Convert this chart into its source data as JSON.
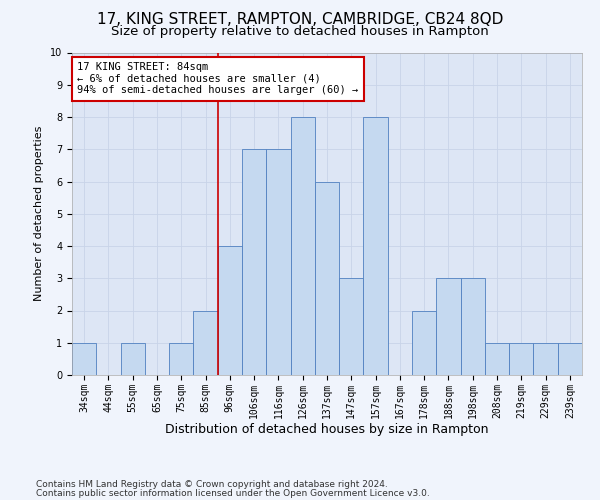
{
  "title1": "17, KING STREET, RAMPTON, CAMBRIDGE, CB24 8QD",
  "title2": "Size of property relative to detached houses in Rampton",
  "xlabel": "Distribution of detached houses by size in Rampton",
  "ylabel": "Number of detached properties",
  "categories": [
    "34sqm",
    "44sqm",
    "55sqm",
    "65sqm",
    "75sqm",
    "85sqm",
    "96sqm",
    "106sqm",
    "116sqm",
    "126sqm",
    "137sqm",
    "147sqm",
    "157sqm",
    "167sqm",
    "178sqm",
    "188sqm",
    "198sqm",
    "208sqm",
    "219sqm",
    "229sqm",
    "239sqm"
  ],
  "values": [
    1,
    0,
    1,
    0,
    1,
    2,
    4,
    7,
    7,
    8,
    6,
    3,
    8,
    0,
    2,
    3,
    3,
    1,
    1,
    1,
    1
  ],
  "bar_color": "#c5d9f0",
  "bar_edge_color": "#5080c0",
  "annotation_box_text": "17 KING STREET: 84sqm\n← 6% of detached houses are smaller (4)\n94% of semi-detached houses are larger (60) →",
  "annotation_box_color": "#ffffff",
  "annotation_box_edge_color": "#cc0000",
  "vline_x": 5.5,
  "vline_color": "#cc0000",
  "ylim": [
    0,
    10
  ],
  "yticks": [
    0,
    1,
    2,
    3,
    4,
    5,
    6,
    7,
    8,
    9,
    10
  ],
  "grid_color": "#c8d4e8",
  "bg_color": "#dde6f5",
  "fig_bg_color": "#f0f4fc",
  "footer1": "Contains HM Land Registry data © Crown copyright and database right 2024.",
  "footer2": "Contains public sector information licensed under the Open Government Licence v3.0.",
  "title1_fontsize": 11,
  "title2_fontsize": 9.5,
  "xlabel_fontsize": 9,
  "ylabel_fontsize": 8,
  "tick_fontsize": 7,
  "annotation_fontsize": 7.5,
  "footer_fontsize": 6.5
}
